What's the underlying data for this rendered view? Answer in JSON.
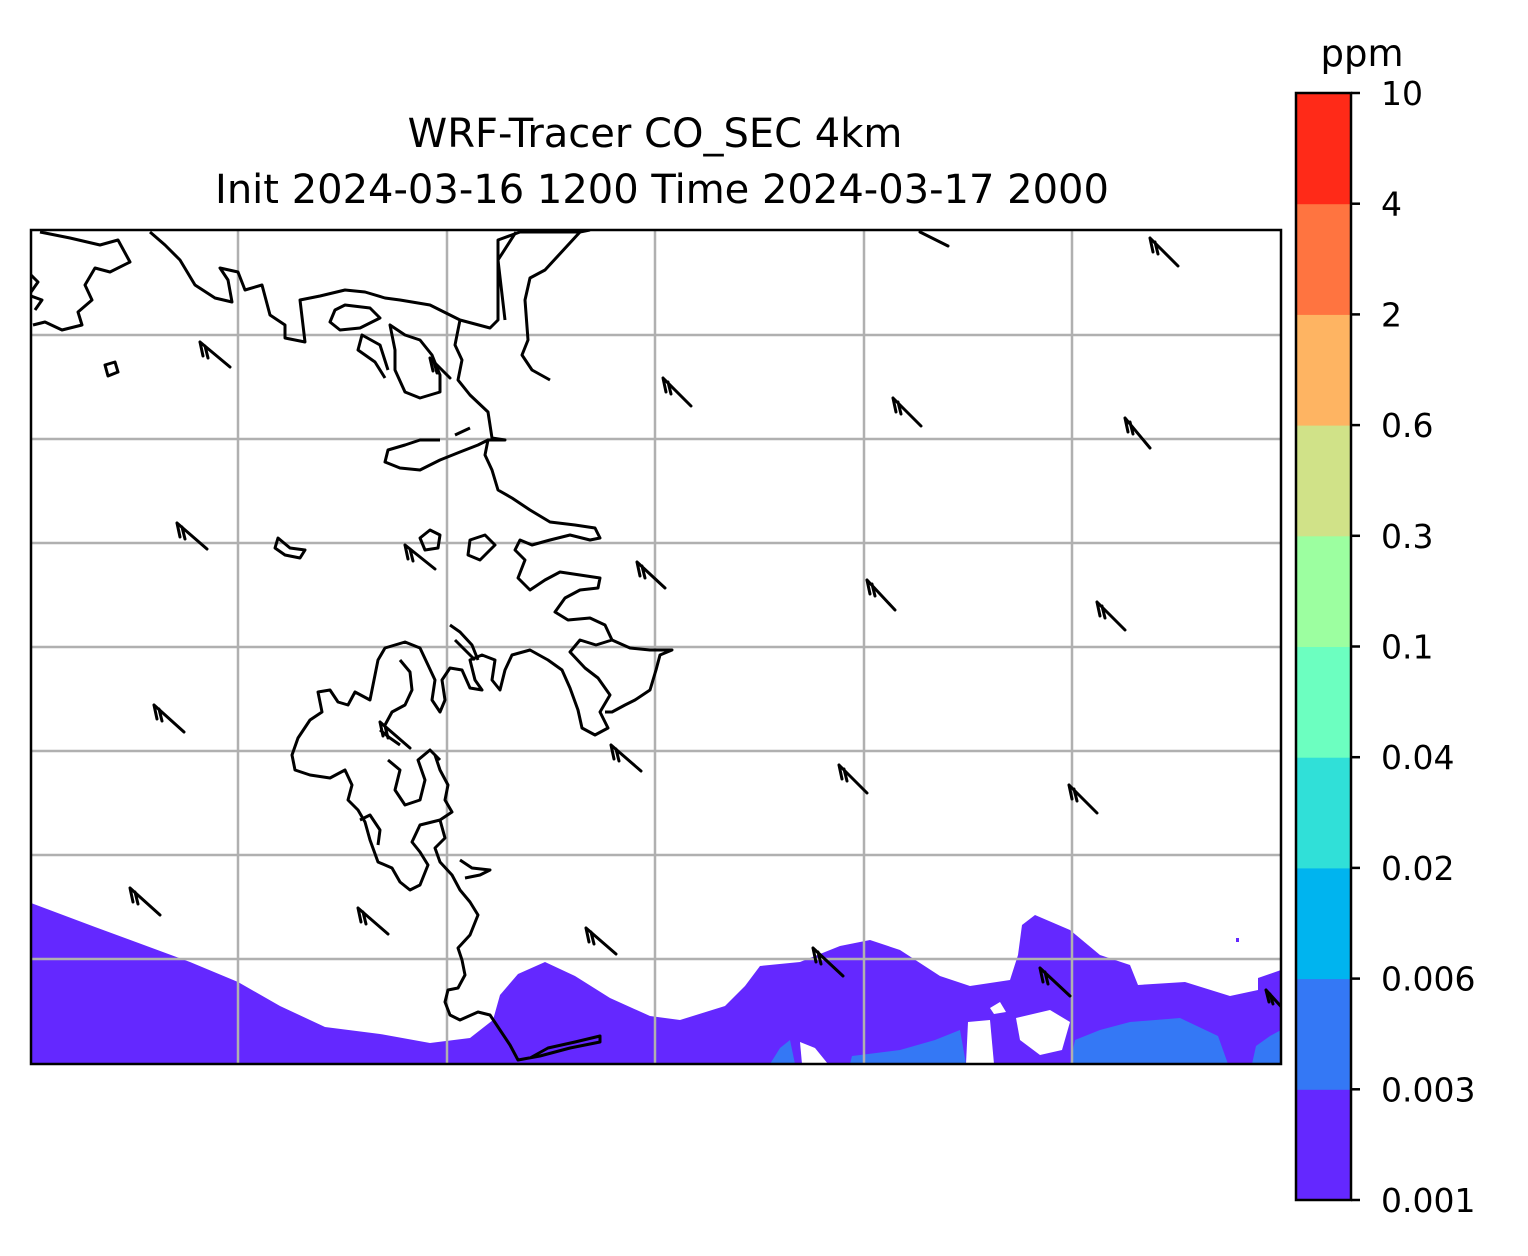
{
  "chart_data": {
    "type": "map",
    "title": "WRF-Tracer CO_SEC 4km",
    "subtitle": "Init 2024-03-16 1200 Time 2024-03-17 2000",
    "field": "CO_SEC",
    "colorbar": {
      "unit": "ppm",
      "levels": [
        "0.001",
        "0.003",
        "0.006",
        "0.02",
        "0.04",
        "0.1",
        "0.3",
        "0.6",
        "2",
        "4",
        "10"
      ],
      "colors": [
        "#6428ff",
        "#3478f5",
        "#00b4ef",
        "#30e0d8",
        "#6cffc0",
        "#9cffa0",
        "#d0e288",
        "#feb462",
        "#ff7440",
        "#ff2a18"
      ]
    },
    "map": {
      "gridlines": true,
      "coastlines": true,
      "wind_barbs": true,
      "plume_color": "#6428ff",
      "plume_high_color": "#3478f5"
    }
  }
}
